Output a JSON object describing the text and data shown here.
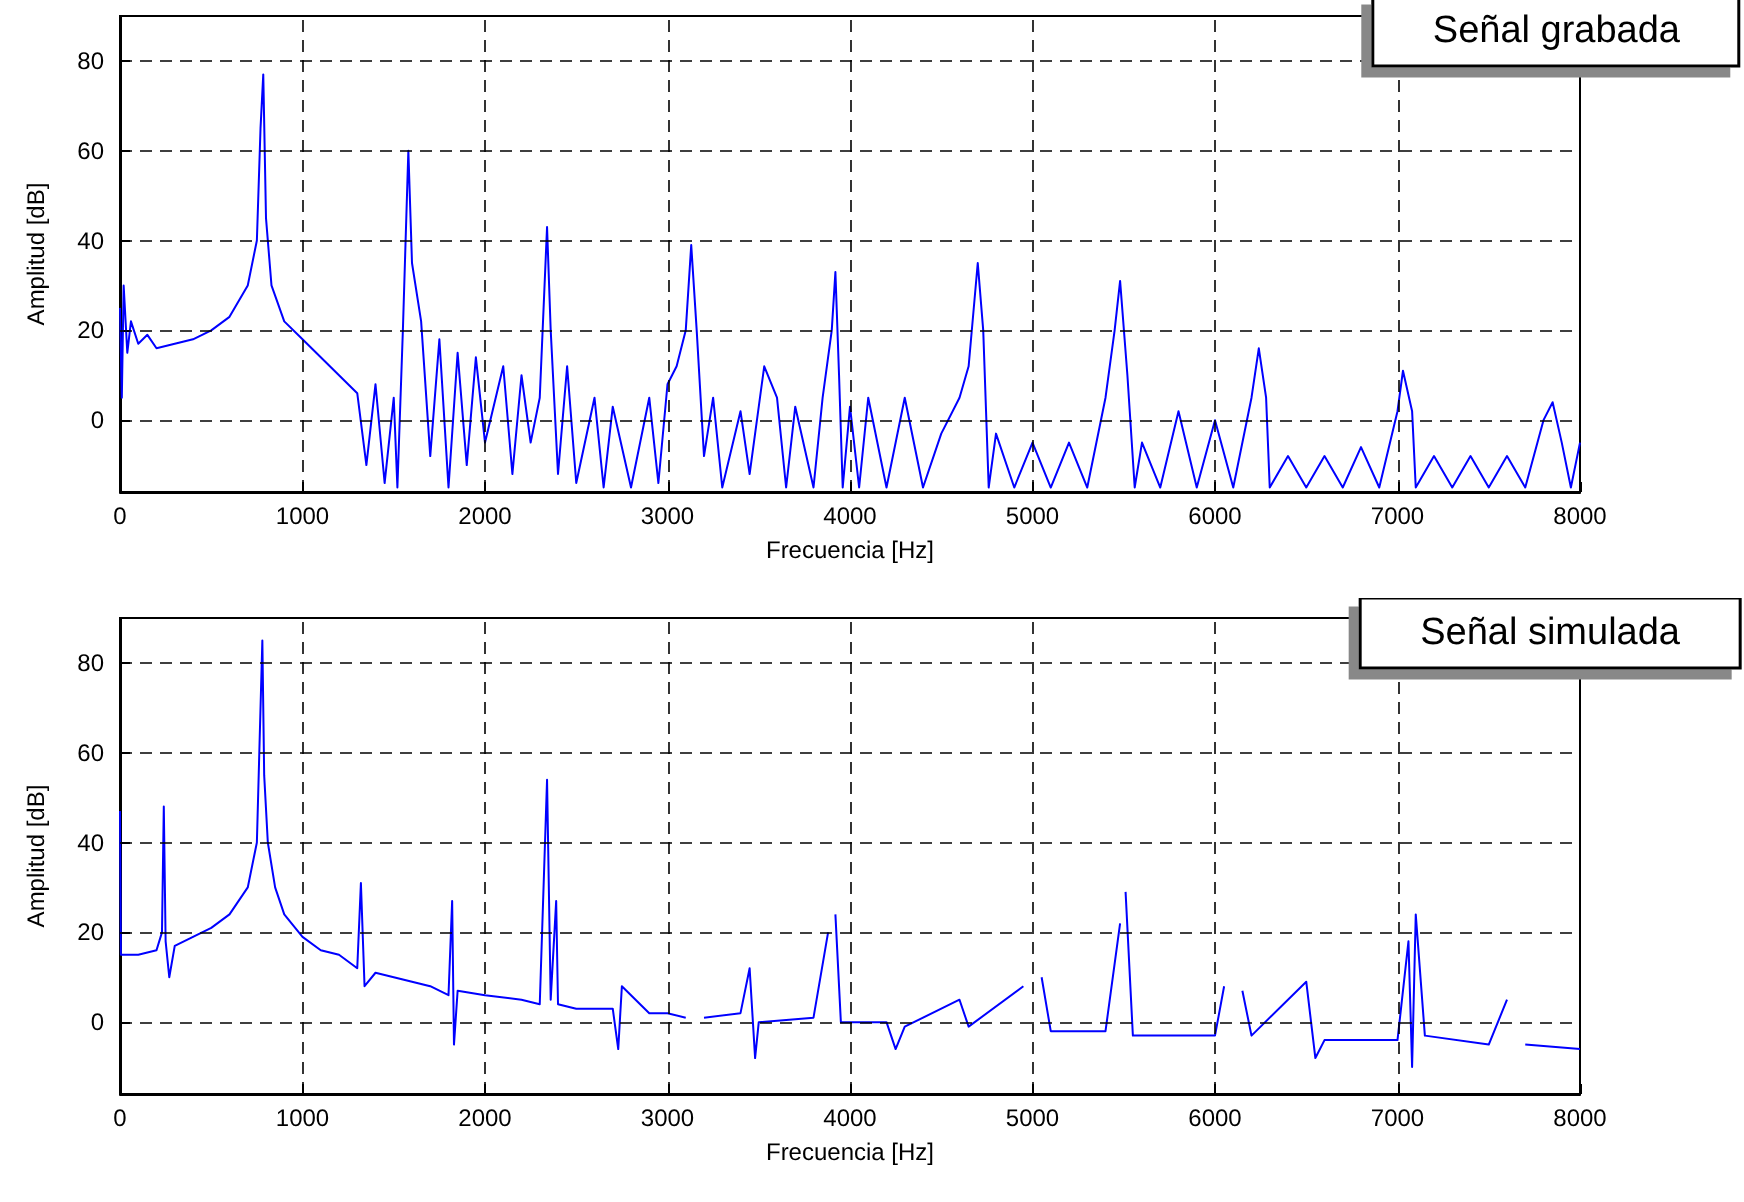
{
  "chart_data": [
    {
      "type": "line",
      "title": "Señal grabada",
      "xlabel": "Frecuencia [Hz]",
      "ylabel": "Amplitud [dB]",
      "xlim": [
        0,
        8000
      ],
      "ylim": [
        -16,
        90
      ],
      "xticks": [
        0,
        1000,
        2000,
        3000,
        4000,
        5000,
        6000,
        7000,
        8000
      ],
      "yticks": [
        0,
        20,
        40,
        60,
        80
      ],
      "grid": true,
      "series": [
        {
          "color": "#0000ff",
          "x": [
            0,
            10,
            20,
            40,
            60,
            100,
            150,
            200,
            300,
            400,
            500,
            600,
            700,
            750,
            770,
            785,
            800,
            830,
            900,
            1000,
            1100,
            1200,
            1300,
            1350,
            1400,
            1450,
            1500,
            1520,
            1550,
            1580,
            1600,
            1650,
            1700,
            1750,
            1800,
            1850,
            1900,
            1950,
            2000,
            2100,
            2150,
            2200,
            2250,
            2300,
            2340,
            2360,
            2400,
            2450,
            2500,
            2600,
            2650,
            2700,
            2800,
            2900,
            2950,
            3000,
            3050,
            3100,
            3130,
            3160,
            3200,
            3250,
            3300,
            3400,
            3450,
            3530,
            3600,
            3650,
            3700,
            3800,
            3850,
            3900,
            3920,
            3940,
            3960,
            4000,
            4050,
            4100,
            4200,
            4300,
            4400,
            4500,
            4600,
            4650,
            4700,
            4730,
            4760,
            4800,
            4900,
            5000,
            5100,
            5200,
            5300,
            5400,
            5450,
            5480,
            5520,
            5560,
            5600,
            5700,
            5800,
            5900,
            6000,
            6100,
            6200,
            6240,
            6280,
            6300,
            6400,
            6500,
            6600,
            6700,
            6800,
            6900,
            7000,
            7030,
            7080,
            7100,
            7200,
            7300,
            7400,
            7500,
            7600,
            7700,
            7800,
            7850,
            7900,
            7950,
            8000
          ],
          "values": [
            25,
            5,
            30,
            15,
            22,
            17,
            19,
            16,
            17,
            18,
            20,
            23,
            30,
            40,
            65,
            77,
            45,
            30,
            22,
            18,
            14,
            10,
            6,
            -10,
            8,
            -14,
            5,
            -15,
            20,
            60,
            35,
            22,
            -8,
            18,
            -15,
            15,
            -10,
            14,
            -5,
            12,
            -12,
            10,
            -5,
            5,
            43,
            20,
            -12,
            12,
            -14,
            5,
            -15,
            3,
            -15,
            5,
            -14,
            8,
            12,
            20,
            39,
            20,
            -8,
            5,
            -15,
            2,
            -12,
            12,
            5,
            -15,
            3,
            -15,
            5,
            20,
            33,
            10,
            -15,
            3,
            -15,
            5,
            -15,
            5,
            -15,
            -3,
            5,
            12,
            35,
            20,
            -15,
            -3,
            -15,
            -5,
            -15,
            -5,
            -15,
            5,
            20,
            31,
            10,
            -15,
            -5,
            -15,
            2,
            -15,
            0,
            -15,
            5,
            16,
            5,
            -15,
            -8,
            -15,
            -8,
            -15,
            -6,
            -15,
            2,
            11,
            2,
            -15,
            -8,
            -15,
            -8,
            -15,
            -8,
            -15,
            0,
            4,
            -5,
            -15,
            -5
          ]
        }
      ]
    },
    {
      "type": "line",
      "title": "Señal simulada",
      "xlabel": "Frecuencia [Hz]",
      "ylabel": "Amplitud [dB]",
      "xlim": [
        0,
        8000
      ],
      "ylim": [
        -16,
        90
      ],
      "xticks": [
        0,
        1000,
        2000,
        3000,
        4000,
        5000,
        6000,
        7000,
        8000
      ],
      "yticks": [
        0,
        20,
        40,
        60,
        80
      ],
      "grid": true,
      "series": [
        {
          "color": "#0000ff",
          "x": [
            0,
            5,
            100,
            200,
            230,
            240,
            250,
            270,
            300,
            400,
            500,
            600,
            700,
            750,
            780,
            790,
            810,
            850,
            900,
            1000,
            1100,
            1200,
            1300,
            1320,
            1340,
            1400,
            1500,
            1600,
            1700,
            1800,
            1820,
            1830,
            1850,
            2000,
            2200,
            2300,
            2340,
            2360,
            2390,
            2400,
            2500,
            2700,
            2730,
            2750,
            2900,
            3000,
            3100,
            3180,
            3200,
            3400,
            3450,
            3480,
            3500,
            3800,
            3880,
            3900,
            3920,
            3950,
            4200,
            4250,
            4300,
            4600,
            4650,
            4950,
            5000,
            5050,
            5100,
            5400,
            5480,
            5500,
            5510,
            5550,
            6000,
            6050,
            6100,
            6150,
            6200,
            6500,
            6550,
            6600,
            7000,
            7060,
            7080,
            7100,
            7150,
            7500,
            7600,
            7650,
            7700,
            8000
          ],
          "values": [
            47,
            15,
            15,
            16,
            20,
            48,
            18,
            10,
            17,
            19,
            21,
            24,
            30,
            40,
            85,
            55,
            40,
            30,
            24,
            19,
            16,
            15,
            12,
            31,
            8,
            11,
            10,
            9,
            8,
            6,
            27,
            -5,
            7,
            6,
            5,
            4,
            54,
            5,
            27,
            4,
            3,
            3,
            -6,
            8,
            2,
            2,
            1,
            null,
            1,
            2,
            12,
            -8,
            0,
            1,
            20,
            null,
            24,
            0,
            0,
            -6,
            -1,
            5,
            -1,
            8,
            null,
            10,
            -2,
            -2,
            22,
            null,
            29,
            -3,
            -3,
            8,
            null,
            7,
            -3,
            9,
            -8,
            -4,
            -4,
            18,
            -10,
            24,
            -3,
            -5,
            5,
            null,
            -5,
            -6
          ]
        }
      ]
    }
  ]
}
